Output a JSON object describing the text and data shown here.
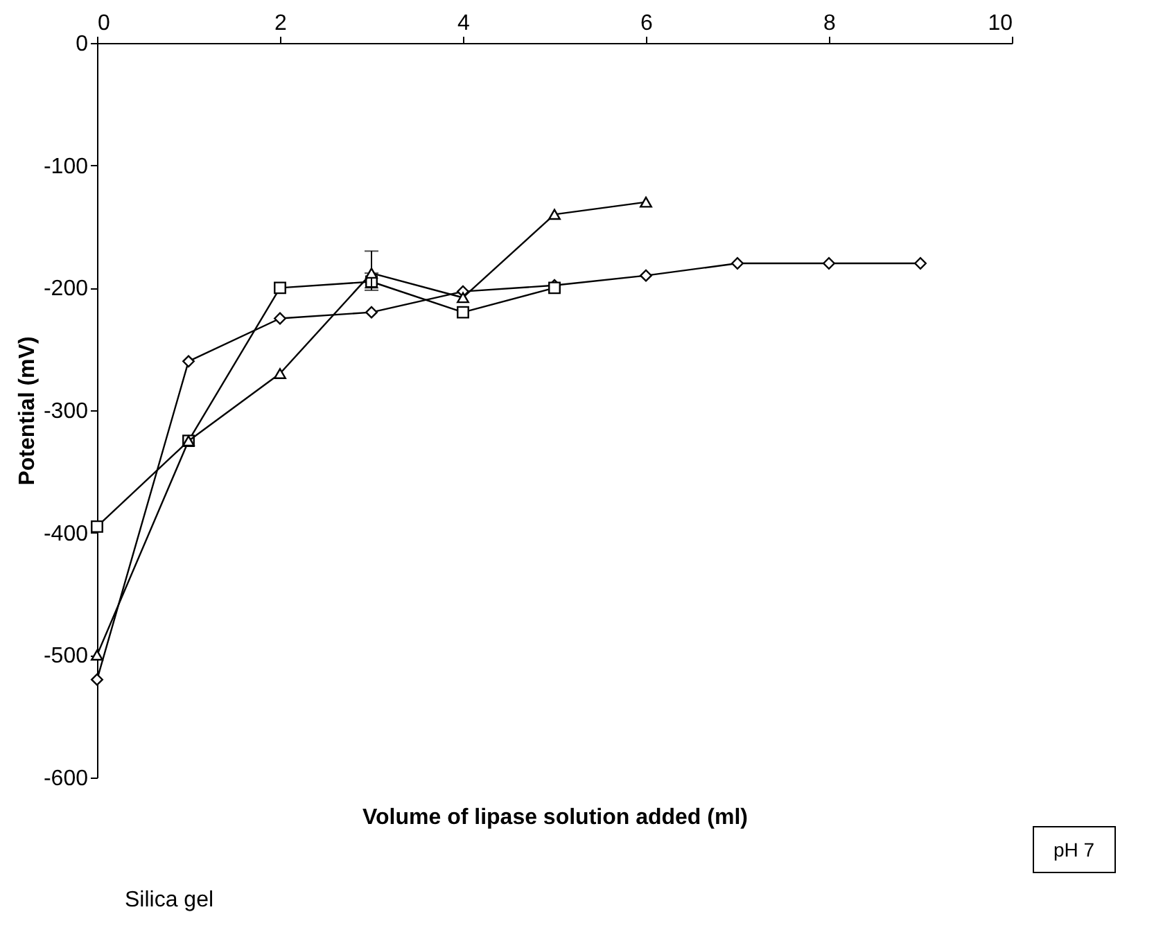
{
  "chart_data": {
    "type": "line",
    "xlabel": "Volume of lipase solution added (ml)",
    "ylabel": "Potential (mV)",
    "x": [
      0,
      1,
      2,
      3,
      4,
      5,
      6,
      7,
      8,
      9
    ],
    "series": [
      {
        "name": "Silica gel",
        "color": "#000000",
        "marker": "diamond",
        "values": [
          -520,
          -260,
          -225,
          -220,
          -203,
          -198,
          -190,
          -180,
          -180,
          -180
        ]
      },
      {
        "color": "#000000",
        "marker": "square",
        "values": [
          -395,
          -325,
          -200,
          -195,
          -220,
          -200,
          null,
          null,
          null,
          null
        ],
        "errors": [
          null,
          null,
          null,
          [
            -202,
            -188
          ],
          null,
          null,
          null,
          null,
          null,
          null
        ]
      },
      {
        "color": "#000000",
        "marker": "triangle",
        "values": [
          -500,
          -325,
          -270,
          -188,
          -208,
          -140,
          -130,
          null,
          null,
          null
        ],
        "errors": [
          null,
          null,
          null,
          [
            -200,
            -170
          ],
          null,
          null,
          null,
          null,
          null,
          null
        ]
      }
    ],
    "xlim": [
      0,
      10
    ],
    "xticks": [
      0,
      2,
      4,
      6,
      8,
      10
    ],
    "ylim": [
      -600,
      0
    ],
    "yticks": [
      -600,
      -500,
      -400,
      -300,
      -200,
      -100,
      0
    ],
    "grid": false,
    "legend": "bottom",
    "line_style": "solid",
    "annotations": [
      "pH 7"
    ]
  }
}
